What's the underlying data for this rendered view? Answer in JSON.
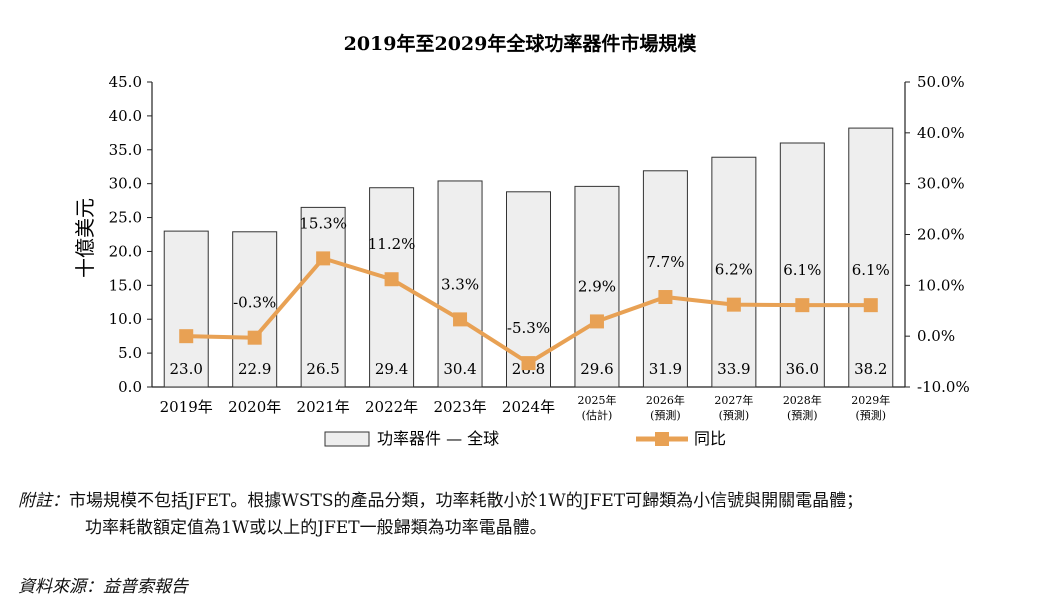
{
  "chart_data": {
    "type": "bar+line",
    "title": "2019年至2029年全球功率器件市場規模",
    "ylabel_left": "十億美元",
    "ylim_left": [
      0,
      45
    ],
    "yticks_left": [
      "0.0",
      "5.0",
      "10.0",
      "15.0",
      "20.0",
      "25.0",
      "30.0",
      "35.0",
      "40.0",
      "45.0"
    ],
    "ylim_right": [
      -10,
      50
    ],
    "yticks_right": [
      "-10.0%",
      "0.0%",
      "10.0%",
      "20.0%",
      "30.0%",
      "40.0%",
      "50.0%"
    ],
    "categories": [
      {
        "year": "2019年",
        "sub": ""
      },
      {
        "year": "2020年",
        "sub": ""
      },
      {
        "year": "2021年",
        "sub": ""
      },
      {
        "year": "2022年",
        "sub": ""
      },
      {
        "year": "2023年",
        "sub": ""
      },
      {
        "year": "2024年",
        "sub": ""
      },
      {
        "year": "2025年",
        "sub": "(估計)"
      },
      {
        "year": "2026年",
        "sub": "(預測)"
      },
      {
        "year": "2027年",
        "sub": "(預測)"
      },
      {
        "year": "2028年",
        "sub": "(預測)"
      },
      {
        "year": "2029年",
        "sub": "(預測)"
      }
    ],
    "series": [
      {
        "name": "功率器件 — 全球",
        "type": "bar",
        "color": "#eeeeee",
        "values": [
          23.0,
          22.9,
          26.5,
          29.4,
          30.4,
          28.8,
          29.6,
          31.9,
          33.9,
          36.0,
          38.2
        ],
        "labels": [
          "23.0",
          "22.9",
          "26.5",
          "29.4",
          "30.4",
          "28.8",
          "29.6",
          "31.9",
          "33.9",
          "36.0",
          "38.2"
        ]
      },
      {
        "name": "同比",
        "type": "line",
        "color": "#e8a154",
        "axis": "right",
        "values": [
          0.0,
          -0.3,
          15.3,
          11.2,
          3.3,
          -5.3,
          2.9,
          7.7,
          6.2,
          6.1,
          6.1
        ],
        "labels": [
          "",
          "-0.3%",
          "15.3%",
          "11.2%",
          "3.3%",
          "-5.3%",
          "2.9%",
          "7.7%",
          "6.2%",
          "6.1%",
          "6.1%"
        ]
      }
    ]
  },
  "notes": {
    "label": "附註：",
    "line1": "市場規模不包括JFET。根據WSTS的產品分類，功率耗散小於1W的JFET可歸類為小信號與開關電晶體；",
    "line2": "功率耗散額定值為1W或以上的JFET一般歸類為功率電晶體。"
  },
  "source": "資料來源：益普索報告"
}
